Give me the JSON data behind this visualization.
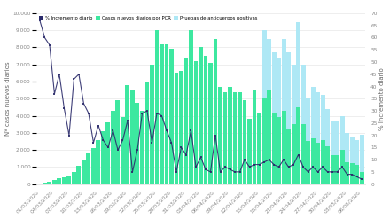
{
  "dates": [
    "01/03/2020",
    "02/03/2020",
    "03/03/2020",
    "04/03/2020",
    "05/03/2020",
    "06/03/2020",
    "07/03/2020",
    "08/03/2020",
    "09/03/2020",
    "10/03/2020",
    "11/03/2020",
    "12/03/2020",
    "13/03/2020",
    "14/03/2020",
    "15/03/2020",
    "16/03/2020",
    "17/03/2020",
    "18/03/2020",
    "19/03/2020",
    "20/03/2020",
    "21/03/2020",
    "22/03/2020",
    "23/03/2020",
    "24/03/2020",
    "25/03/2020",
    "26/03/2020",
    "27/03/2020",
    "28/03/2020",
    "29/03/2020",
    "30/03/2020",
    "31/03/2020",
    "01/04/2020",
    "02/04/2020",
    "03/04/2020",
    "04/04/2020",
    "05/04/2020",
    "06/04/2020",
    "07/04/2020",
    "08/04/2020",
    "09/04/2020",
    "10/04/2020",
    "11/04/2020",
    "12/04/2020",
    "13/04/2020",
    "14/04/2020",
    "15/04/2020",
    "16/04/2020",
    "17/04/2020",
    "18/04/2020",
    "19/04/2020",
    "20/04/2020",
    "21/04/2020",
    "22/04/2020",
    "23/04/2020",
    "24/04/2020",
    "25/04/2020",
    "26/04/2020",
    "27/04/2020",
    "28/04/2020",
    "29/04/2020",
    "30/04/2020",
    "01/05/2020",
    "02/05/2020",
    "03/05/2020",
    "04/05/2020",
    "05/05/2020",
    "06/05/2020"
  ],
  "pcr_cases": [
    45,
    80,
    160,
    220,
    320,
    420,
    500,
    720,
    1050,
    1400,
    1800,
    2100,
    2600,
    3100,
    3600,
    4300,
    4900,
    3900,
    5800,
    5500,
    4750,
    4300,
    6000,
    7000,
    9000,
    8200,
    8200,
    7900,
    6500,
    6600,
    7400,
    9000,
    7200,
    8000,
    7500,
    7100,
    8500,
    5700,
    5400,
    5700,
    5400,
    5400,
    4900,
    3800,
    5500,
    4200,
    5000,
    5500,
    4200,
    3900,
    4300,
    3200,
    3500,
    4500,
    3500,
    2500,
    2700,
    2400,
    2600,
    2200,
    1700,
    1700,
    2000,
    1300,
    1200,
    1100,
    700
  ],
  "antibody_cases": [
    0,
    0,
    0,
    0,
    0,
    0,
    0,
    0,
    0,
    0,
    0,
    0,
    0,
    0,
    0,
    0,
    0,
    0,
    0,
    0,
    0,
    0,
    0,
    0,
    0,
    0,
    0,
    0,
    0,
    0,
    0,
    0,
    0,
    0,
    0,
    0,
    0,
    0,
    0,
    0,
    0,
    0,
    0,
    0,
    0,
    0,
    0,
    0,
    0,
    0,
    0,
    0,
    0,
    0,
    0,
    0,
    0,
    0,
    0,
    0,
    0,
    0,
    0,
    0,
    0,
    0,
    0
  ],
  "antibody_cases_v2": [
    0,
    0,
    0,
    0,
    0,
    0,
    0,
    0,
    0,
    0,
    0,
    0,
    0,
    0,
    0,
    0,
    0,
    0,
    0,
    0,
    0,
    0,
    0,
    0,
    0,
    0,
    0,
    0,
    0,
    0,
    0,
    0,
    0,
    0,
    0,
    0,
    0,
    0,
    0,
    0,
    0,
    0,
    0,
    0,
    0,
    0,
    4000,
    3000,
    3500,
    3500,
    4200,
    4500,
    3500,
    5000,
    3500,
    2500,
    3000,
    3000,
    2600,
    2200,
    2000,
    2000,
    2000,
    1700,
    1600,
    1500,
    2200
  ],
  "pct_increment": [
    67,
    60,
    57,
    37,
    45,
    31,
    20,
    43,
    45,
    33,
    29,
    17,
    24,
    18,
    15,
    22,
    14,
    18,
    26,
    5,
    14,
    29,
    30,
    17,
    29,
    28,
    22,
    17,
    5,
    15,
    12,
    22,
    7,
    11,
    6,
    5,
    20,
    5,
    7,
    6,
    5,
    5,
    10,
    7,
    8,
    8,
    9,
    10,
    8,
    7,
    10,
    7,
    8,
    12,
    7,
    5,
    7,
    5,
    7,
    5,
    5,
    5,
    7,
    4,
    4,
    3,
    2
  ],
  "xtick_positions": [
    0,
    3,
    6,
    9,
    12,
    15,
    18,
    21,
    24,
    27,
    30,
    33,
    36,
    39,
    42,
    45,
    48,
    51,
    54,
    57,
    60,
    63,
    66
  ],
  "xtick_labels": [
    "01/03/2020",
    "04/03/2020",
    "07/03/2020",
    "10/03/2020",
    "13/03/2020",
    "16/03/2020",
    "19/03/2020",
    "22/03/2020",
    "25/03/2020",
    "28/03/2020",
    "31/03/2020",
    "03/04/2020",
    "06/04/2020",
    "09/04/2020",
    "12/04/2020",
    "15/04/2020",
    "18/04/2020",
    "21/04/2020",
    "24/04/2020",
    "27/04/2020",
    "30/04/2020",
    "03/05/2020",
    "06/05/2020"
  ],
  "bar_color_pcr": "#3de8a0",
  "bar_color_antibody": "#aee8f5",
  "line_color": "#2b2b6b",
  "legend_labels": [
    "% Incremento diario",
    "Casos nuevos diarios por PCR",
    "Pruebas de anticuerpos positivas"
  ],
  "ylabel_left": "Nº casos nuevos diarios",
  "ylabel_right": "% Incremento diario",
  "ylim_left": [
    0,
    10000
  ],
  "ylim_right": [
    0,
    70
  ],
  "yticks_left": [
    0,
    1000,
    2000,
    3000,
    4000,
    5000,
    6000,
    7000,
    8000,
    9000,
    10000
  ],
  "background_color": "#ffffff",
  "grid_color": "#e8e8e8",
  "label_fontsize": 5.0,
  "tick_fontsize": 4.2
}
